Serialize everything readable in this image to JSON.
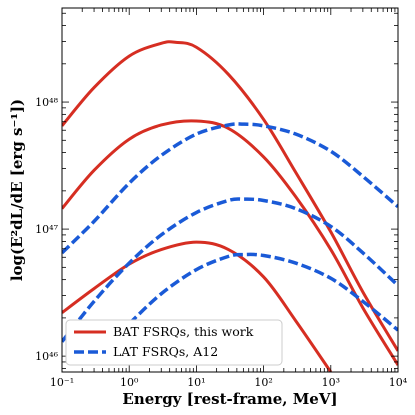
{
  "chart_data": {
    "type": "line",
    "title": "",
    "xlabel": "Energy [rest-frame, MeV]",
    "ylabel": "log(E²dL/dE [erg s⁻¹])",
    "xscale": "log",
    "yscale": "log",
    "xlim": [
      0.1,
      10000
    ],
    "ylim": [
      7.5e+45,
      5.5e+48
    ],
    "xticks": [
      {
        "value": 0.1,
        "label": "10⁻¹"
      },
      {
        "value": 1,
        "label": "10⁰"
      },
      {
        "value": 10,
        "label": "10¹"
      },
      {
        "value": 100,
        "label": "10²"
      },
      {
        "value": 1000,
        "label": "10³"
      },
      {
        "value": 10000,
        "label": "10⁴"
      }
    ],
    "yticks": [
      {
        "value": 1e+46,
        "label": "10⁴⁶"
      },
      {
        "value": 1e+47,
        "label": "10⁴⁷"
      },
      {
        "value": 1e+48,
        "label": "10⁴⁸"
      }
    ],
    "legend": {
      "position": "bottom-left",
      "entries": [
        {
          "label": "BAT FSRQs, this work",
          "color": "#d62e22",
          "style": "solid"
        },
        {
          "label": "LAT FSRQs, A12",
          "color": "#1a5ad7",
          "style": "dashed"
        }
      ]
    },
    "series": [
      {
        "group": "BAT FSRQs, this work",
        "color": "#d62e22",
        "style": "solid",
        "x": [
          0.1,
          0.3,
          1,
          3,
          5,
          10,
          30,
          100,
          300,
          1000,
          3000,
          10000
        ],
        "y": [
          6.5e+47,
          1.3e+48,
          2.3e+48,
          2.9e+48,
          2.95e+48,
          2.7e+48,
          1.65e+48,
          7.3e+47,
          2.8e+47,
          9.5e+46,
          3.2e+46,
          1.1e+46
        ]
      },
      {
        "group": "BAT FSRQs, this work",
        "color": "#d62e22",
        "style": "solid",
        "x": [
          0.1,
          0.3,
          1,
          3,
          10,
          30,
          100,
          300,
          1000,
          3000,
          10000
        ],
        "y": [
          1.45e+47,
          2.9e+47,
          5.1e+47,
          6.6e+47,
          7.1e+47,
          6.2e+47,
          3.7e+47,
          1.8e+47,
          6.9e+46,
          2.4e+46,
          8.5e+45
        ]
      },
      {
        "group": "BAT FSRQs, this work",
        "color": "#d62e22",
        "style": "solid",
        "x": [
          0.1,
          0.3,
          1,
          3,
          10,
          30,
          100,
          300,
          1000
        ],
        "y": [
          2.2e+46,
          3.4e+46,
          5.3e+46,
          6.9e+46,
          7.9e+46,
          6.9e+46,
          4.2e+46,
          1.9e+46,
          7.5e+45
        ]
      },
      {
        "group": "LAT FSRQs, A12",
        "color": "#1a5ad7",
        "style": "dashed",
        "x": [
          0.1,
          0.3,
          1,
          3,
          10,
          30,
          50,
          100,
          300,
          1000,
          3000,
          10000
        ],
        "y": [
          6.5e+46,
          1.15e+47,
          2.3e+47,
          3.8e+47,
          5.6e+47,
          6.6e+47,
          6.7e+47,
          6.5e+47,
          5.6e+47,
          4.1e+47,
          2.6e+47,
          1.5e+47
        ]
      },
      {
        "group": "LAT FSRQs, A12",
        "color": "#1a5ad7",
        "style": "dashed",
        "x": [
          0.1,
          0.3,
          1,
          3,
          10,
          30,
          50,
          100,
          300,
          1000,
          3000,
          10000
        ],
        "y": [
          1.3e+46,
          2.7e+46,
          5.4e+46,
          9e+46,
          1.35e+47,
          1.68e+47,
          1.72e+47,
          1.68e+47,
          1.45e+47,
          1.05e+47,
          6.5e+46,
          3.6e+46
        ]
      },
      {
        "group": "LAT FSRQs, A12",
        "color": "#1a5ad7",
        "style": "dashed",
        "x": [
          1,
          3,
          10,
          30,
          50,
          100,
          300,
          1000,
          3000,
          10000
        ],
        "y": [
          1.8e+46,
          3.1e+46,
          4.8e+46,
          6.1e+46,
          6.3e+46,
          6.2e+46,
          5.4e+46,
          4.1e+46,
          2.7e+46,
          1.6e+46
        ]
      }
    ]
  }
}
